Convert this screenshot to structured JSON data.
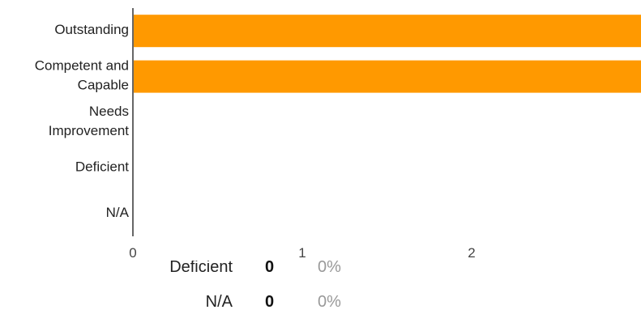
{
  "chart_data": {
    "type": "bar",
    "orientation": "horizontal",
    "categories": [
      "Outstanding",
      "Competent and Capable",
      "Needs Improvement",
      "Deficient",
      "N/A"
    ],
    "category_lines": [
      [
        "Outstanding"
      ],
      [
        "Competent and",
        "Capable"
      ],
      [
        "Needs",
        "Improvement"
      ],
      [
        "Deficient"
      ],
      [
        "N/A"
      ]
    ],
    "values": [
      3,
      3,
      0,
      0,
      0
    ],
    "xlim": [
      0,
      3
    ],
    "xticks": [
      "0",
      "1",
      "2"
    ],
    "bar_color": "#ff9900",
    "grid": false,
    "legend": "none"
  },
  "summary_rows": [
    {
      "label": "Deficient",
      "count": "0",
      "percent": "0%"
    },
    {
      "label": "N/A",
      "count": "0",
      "percent": "0%"
    }
  ]
}
